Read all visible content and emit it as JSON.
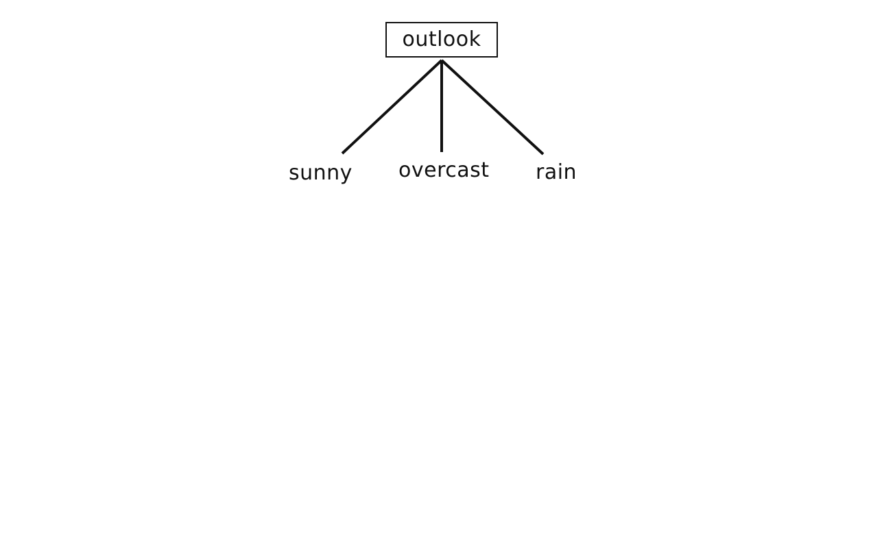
{
  "tree": {
    "root": {
      "label": "outlook"
    },
    "branches": [
      {
        "label": "sunny"
      },
      {
        "label": "overcast"
      },
      {
        "label": "rain"
      }
    ]
  }
}
